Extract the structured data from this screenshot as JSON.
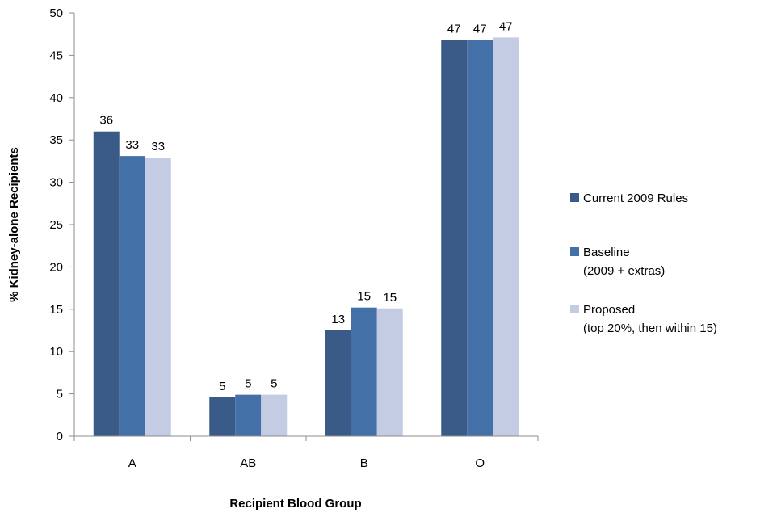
{
  "chart_data": {
    "type": "bar",
    "categories": [
      "A",
      "AB",
      "B",
      "O"
    ],
    "series": [
      {
        "name": "Current 2009 Rules",
        "values": [
          36.0,
          4.6,
          12.5,
          46.8
        ],
        "labels": [
          "36",
          "5",
          "13",
          "47"
        ],
        "color": "#3a5a87"
      },
      {
        "name": "Baseline",
        "name_line2": "(2009 + extras)",
        "values": [
          33.1,
          4.9,
          15.2,
          46.8
        ],
        "labels": [
          "33",
          "5",
          "15",
          "47"
        ],
        "color": "#4470a8"
      },
      {
        "name": "Proposed",
        "name_line2": "(top 20%, then within 15)",
        "values": [
          32.9,
          4.9,
          15.1,
          47.1
        ],
        "labels": [
          "33",
          "5",
          "15",
          "47"
        ],
        "color": "#c3cce3"
      }
    ],
    "xlabel": "Recipient Blood Group",
    "ylabel": "% Kidney-alone Recipients",
    "ylim": [
      0,
      50
    ],
    "yticks": [
      "0",
      "5",
      "10",
      "15",
      "20",
      "25",
      "30",
      "35",
      "40",
      "45",
      "50"
    ],
    "grid": false,
    "legend_position": "right"
  }
}
